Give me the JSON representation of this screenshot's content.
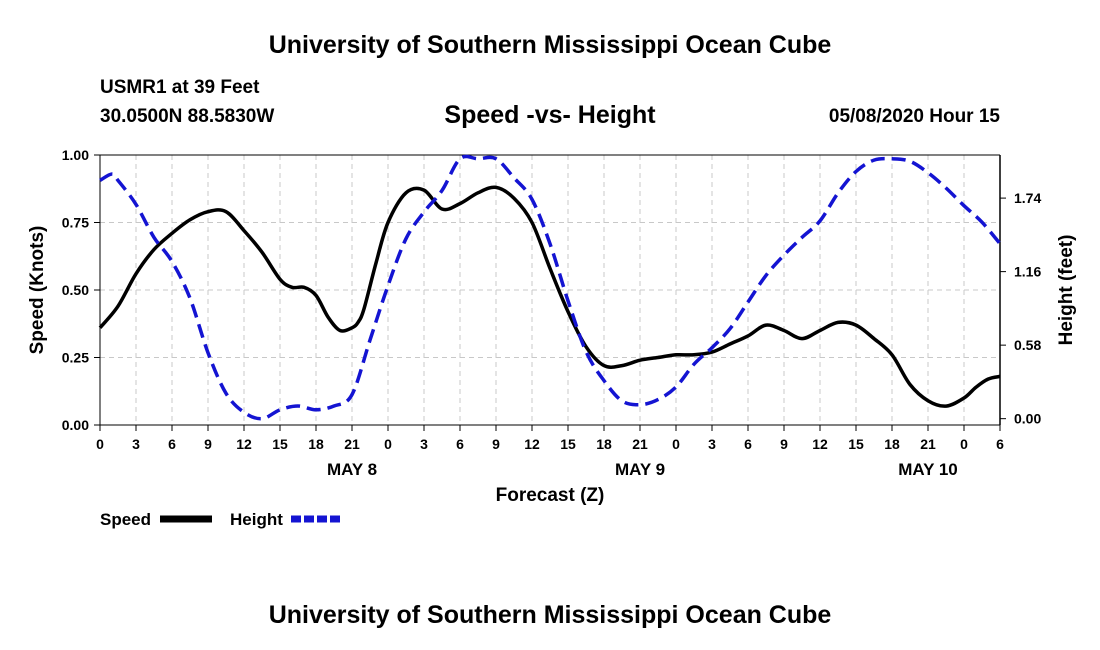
{
  "header": {
    "title": "University of Southern Mississippi Ocean Cube",
    "station": "USMR1 at 39 Feet",
    "location": "30.0500N 88.5830W",
    "subtitle": "Speed -vs- Height",
    "datetime": "05/08/2020 Hour 15"
  },
  "footer": {
    "title": "University of Southern Mississippi Ocean Cube"
  },
  "legend": {
    "speed_label": "Speed",
    "height_label": "Height"
  },
  "chart_data": {
    "type": "line",
    "title": "Speed -vs- Height",
    "xlabel": "Forecast (Z)",
    "ylabel_left": "Speed (Knots)",
    "ylabel_right": "Height (feet)",
    "x_unit": "hours since May 8 00Z",
    "xlim": [
      -21,
      54
    ],
    "ylim_left": [
      0,
      1.0
    ],
    "ylim_right": [
      -0.05,
      2.08
    ],
    "x_ticks": [
      -21,
      -18,
      -15,
      -12,
      -9,
      -6,
      -3,
      0,
      3,
      6,
      9,
      12,
      15,
      18,
      21,
      24,
      27,
      30,
      33,
      36,
      39,
      42,
      45,
      48,
      51,
      54
    ],
    "x_tick_labels": [
      "0",
      "3",
      "6",
      "9",
      "12",
      "15",
      "18",
      "21",
      "0",
      "3",
      "6",
      "9",
      "12",
      "15",
      "18",
      "21",
      "0",
      "3",
      "6",
      "9",
      "12",
      "15",
      "18",
      "21",
      "0",
      "6"
    ],
    "day_labels": [
      {
        "x": 0,
        "label": "MAY 8"
      },
      {
        "x": 24,
        "label": "MAY 9"
      },
      {
        "x": 48,
        "label": "MAY 10"
      }
    ],
    "left_ticks": [
      0.0,
      0.25,
      0.5,
      0.75,
      1.0
    ],
    "left_tick_labels": [
      "0.00",
      "0.25",
      "0.50",
      "0.75",
      "1.00"
    ],
    "right_ticks": [
      0.0,
      0.58,
      1.16,
      1.74
    ],
    "right_tick_labels": [
      "0.00",
      "0.58",
      "1.16",
      "1.74"
    ],
    "grid": true,
    "legend_position": "bottom-left",
    "series": [
      {
        "name": "Speed",
        "axis": "left",
        "color": "#000000",
        "style": "solid",
        "x": [
          -21,
          -19.5,
          -18,
          -16.5,
          -15,
          -13.5,
          -12,
          -10.5,
          -9,
          -7.5,
          -6,
          -5,
          -4,
          -3,
          -2,
          -1,
          0,
          0.5,
          1,
          2,
          3,
          4.5,
          6,
          7.5,
          9,
          10.5,
          12,
          13.5,
          15,
          16.5,
          18,
          19.5,
          21,
          22.5,
          24,
          25.5,
          27,
          28.5,
          30,
          31.5,
          33,
          34.5,
          36,
          37.5,
          39,
          40.5,
          42,
          43.5,
          45,
          46.5,
          48,
          49.5,
          51,
          52,
          53,
          54
        ],
        "values": [
          0.36,
          0.44,
          0.56,
          0.65,
          0.71,
          0.76,
          0.79,
          0.79,
          0.72,
          0.64,
          0.54,
          0.51,
          0.51,
          0.48,
          0.4,
          0.35,
          0.36,
          0.38,
          0.43,
          0.6,
          0.75,
          0.86,
          0.87,
          0.8,
          0.82,
          0.86,
          0.88,
          0.84,
          0.75,
          0.58,
          0.42,
          0.29,
          0.22,
          0.22,
          0.24,
          0.25,
          0.26,
          0.26,
          0.27,
          0.3,
          0.33,
          0.37,
          0.35,
          0.32,
          0.35,
          0.38,
          0.37,
          0.32,
          0.26,
          0.15,
          0.09,
          0.07,
          0.1,
          0.14,
          0.17,
          0.18
        ]
      },
      {
        "name": "Height",
        "axis": "right",
        "color": "#1414d2",
        "style": "dashed",
        "x": [
          -21,
          -20,
          -19.5,
          -18,
          -16.5,
          -15,
          -13.5,
          -12,
          -10.5,
          -9,
          -7.5,
          -6,
          -4.5,
          -3,
          -1.5,
          0,
          1.5,
          3,
          4.5,
          6,
          7.5,
          9,
          10.5,
          12,
          13.5,
          15,
          16.5,
          18,
          19.5,
          21,
          22.5,
          24,
          25.5,
          27,
          28.5,
          30,
          31.5,
          33,
          34.5,
          36,
          37.5,
          39,
          40.5,
          42,
          43.5,
          45,
          46.5,
          48,
          49.5,
          51,
          52.5,
          54
        ],
        "values": [
          1.88,
          1.93,
          1.88,
          1.69,
          1.43,
          1.24,
          0.95,
          0.52,
          0.2,
          0.05,
          0.0,
          0.07,
          0.1,
          0.07,
          0.1,
          0.19,
          0.62,
          1.05,
          1.42,
          1.63,
          1.8,
          2.05,
          2.05,
          2.05,
          1.9,
          1.73,
          1.38,
          0.93,
          0.53,
          0.3,
          0.14,
          0.11,
          0.15,
          0.25,
          0.43,
          0.56,
          0.71,
          0.92,
          1.13,
          1.29,
          1.43,
          1.56,
          1.78,
          1.95,
          2.04,
          2.05,
          2.03,
          1.94,
          1.82,
          1.68,
          1.55,
          1.38
        ]
      }
    ]
  }
}
